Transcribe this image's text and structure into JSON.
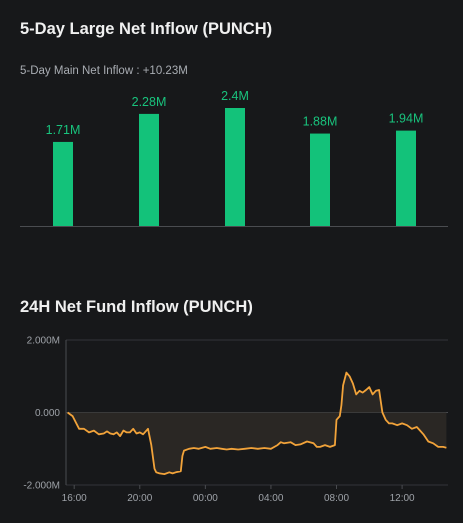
{
  "bar_section": {
    "title": "5-Day Large Net Inflow (PUNCH)",
    "summary_label": "5-Day Main Net Inflow : ",
    "summary_value": "+10.23M"
  },
  "line_section": {
    "title": "24H Net Fund Inflow (PUNCH)"
  },
  "colors": {
    "bar": "#13c27a",
    "bar_label": "#19c37d",
    "line": "#f2a33a",
    "fill": "#2a2724",
    "axis": "#4a4c50",
    "grid": "#333539"
  },
  "chart_data": [
    {
      "type": "bar",
      "categories": [
        "",
        "",
        "",
        "",
        ""
      ],
      "values": [
        1.71,
        2.28,
        2.4,
        1.88,
        1.94
      ],
      "data_labels": [
        "1.71M",
        "2.28M",
        "2.4M",
        "1.88M",
        "1.94M"
      ],
      "ylim": [
        0,
        2.6
      ],
      "title": "5-Day Large Net Inflow (PUNCH)"
    },
    {
      "type": "area",
      "title": "24H Net Fund Inflow (PUNCH)",
      "ylim": [
        -2.0,
        2.0
      ],
      "yticks": [
        2.0,
        0.0,
        -2.0
      ],
      "ytick_labels": [
        "2.000M",
        "0.000",
        "-2.000M"
      ],
      "xlim": [
        15.5,
        38.8
      ],
      "xticks": [
        16,
        20,
        24,
        28,
        32,
        36
      ],
      "xtick_labels": [
        "16:00",
        "20:00",
        "00:00",
        "04:00",
        "08:00",
        "12:00"
      ],
      "x": [
        15.6,
        15.9,
        16.3,
        16.6,
        16.9,
        17.2,
        17.5,
        17.8,
        18.0,
        18.2,
        18.4,
        18.6,
        18.8,
        19.0,
        19.2,
        19.4,
        19.6,
        19.8,
        20.0,
        20.2,
        20.5,
        20.7,
        20.9,
        21.0,
        21.2,
        21.5,
        21.8,
        22.0,
        22.2,
        22.5,
        22.6,
        22.7,
        23.0,
        23.3,
        23.6,
        24.0,
        24.3,
        24.7,
        25.0,
        25.3,
        25.6,
        26.0,
        26.4,
        26.8,
        27.2,
        27.6,
        28.0,
        28.4,
        28.6,
        28.8,
        29.2,
        29.5,
        29.8,
        30.2,
        30.6,
        30.8,
        31.0,
        31.3,
        31.6,
        31.9,
        32.0,
        32.2,
        32.3,
        32.4,
        32.6,
        32.8,
        33.0,
        33.2,
        33.4,
        33.6,
        33.8,
        34.0,
        34.2,
        34.4,
        34.6,
        34.8,
        35.0,
        35.2,
        35.4,
        35.7,
        36.0,
        36.3,
        36.6,
        36.9,
        37.1,
        37.3,
        37.6,
        37.9,
        38.2,
        38.5,
        38.7
      ],
      "y": [
        0.0,
        -0.1,
        -0.45,
        -0.45,
        -0.55,
        -0.5,
        -0.6,
        -0.58,
        -0.52,
        -0.58,
        -0.6,
        -0.55,
        -0.65,
        -0.5,
        -0.55,
        -0.55,
        -0.45,
        -0.58,
        -0.55,
        -0.6,
        -0.45,
        -0.9,
        -1.55,
        -1.65,
        -1.68,
        -1.7,
        -1.65,
        -1.68,
        -1.65,
        -1.62,
        -1.2,
        -1.05,
        -1.0,
        -0.98,
        -1.0,
        -0.95,
        -1.0,
        -0.98,
        -1.0,
        -1.02,
        -1.0,
        -1.02,
        -1.0,
        -0.98,
        -1.0,
        -0.98,
        -1.0,
        -0.9,
        -0.82,
        -0.85,
        -0.82,
        -0.9,
        -0.88,
        -0.8,
        -0.85,
        -0.95,
        -0.95,
        -0.9,
        -0.95,
        -0.9,
        -0.2,
        -0.1,
        0.2,
        0.75,
        1.1,
        1.0,
        0.8,
        0.5,
        0.6,
        0.55,
        0.62,
        0.7,
        0.5,
        0.6,
        0.62,
        0.0,
        -0.2,
        -0.3,
        -0.3,
        -0.35,
        -0.3,
        -0.35,
        -0.45,
        -0.4,
        -0.5,
        -0.6,
        -0.8,
        -0.85,
        -0.95,
        -0.95,
        -0.97
      ]
    }
  ]
}
